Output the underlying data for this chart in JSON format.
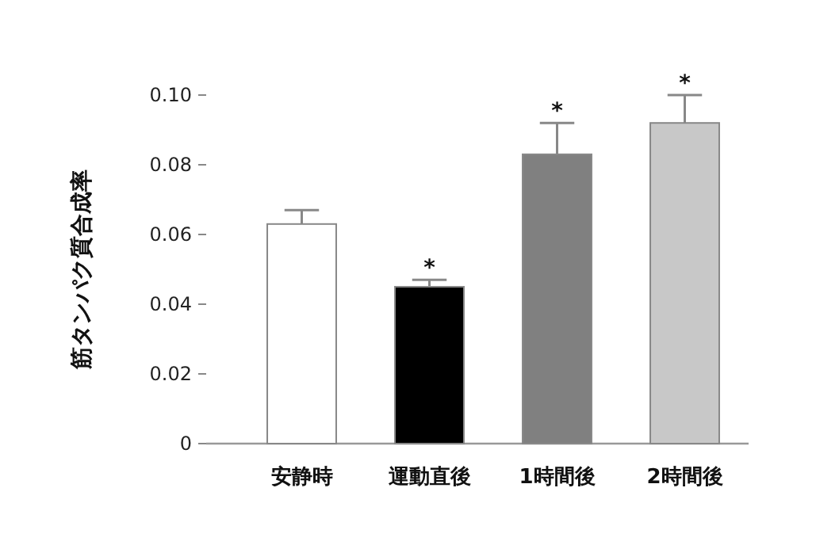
{
  "chart_data": {
    "type": "bar",
    "ylabel": "筋タンパク質合成率",
    "categories": [
      "安静時",
      "運動直後",
      "1時間後",
      "2時間後"
    ],
    "values": [
      0.063,
      0.045,
      0.083,
      0.092
    ],
    "errors": [
      0.004,
      0.002,
      0.009,
      0.008
    ],
    "colors": [
      "#ffffff",
      "#000000",
      "#808080",
      "#c8c8c8"
    ],
    "ylim": [
      0,
      0.1
    ],
    "yticks": [
      0,
      {
        "value": 0.02,
        "label": "0.02"
      },
      {
        "value": 0.04,
        "label": "0.04"
      },
      {
        "value": 0.06,
        "label": "0.06"
      },
      {
        "value": 0.08,
        "label": "0.08"
      },
      {
        "value": 0.1,
        "label": "0.10"
      }
    ],
    "annotations": [
      {
        "text": "*",
        "x": "運動直後",
        "y": 0.047
      },
      {
        "text": "*",
        "x": "1時間後",
        "y": 0.092
      },
      {
        "text": "*",
        "x": "2時間後",
        "y": 0.1
      }
    ],
    "grid": false
  }
}
